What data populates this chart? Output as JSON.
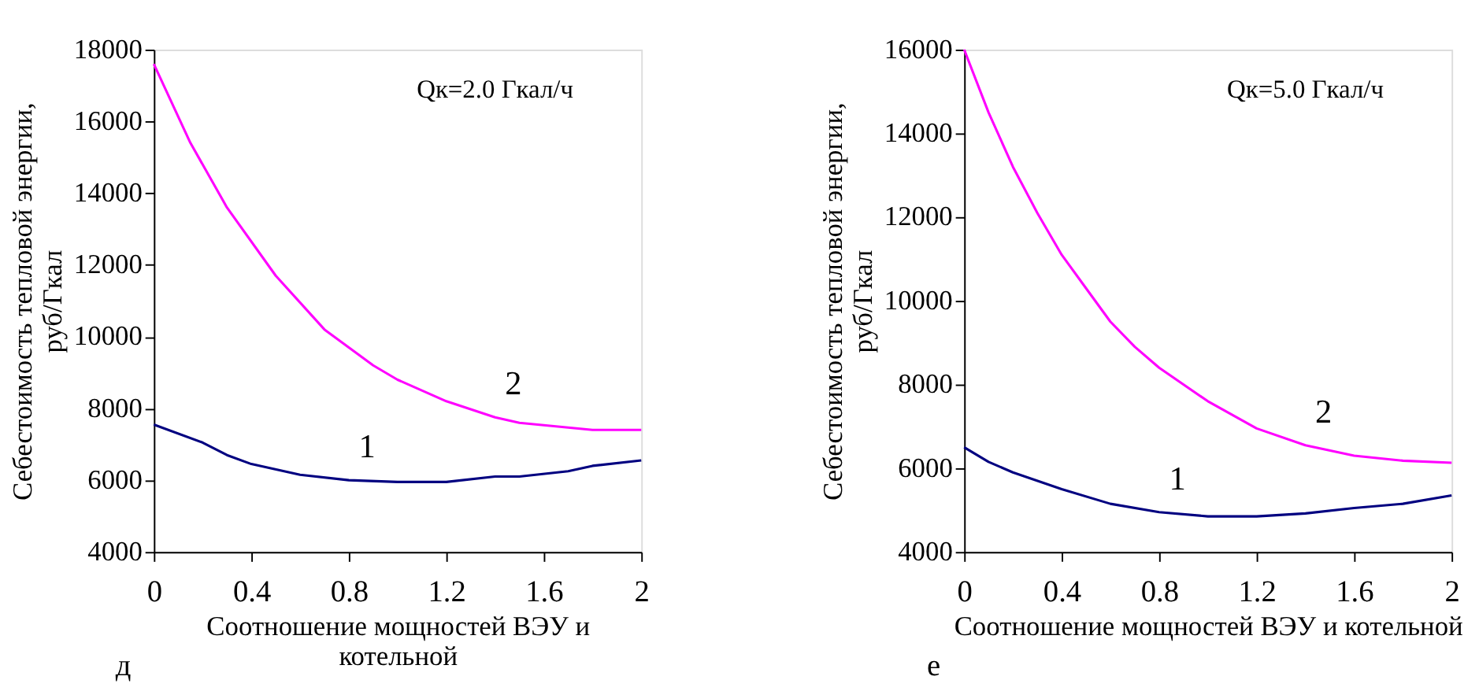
{
  "chart_data": [
    {
      "type": "line",
      "xlabel": "Соотношение мощностей ВЭУ и котельной",
      "ylabel": "Себестоимость тепловой энергии, руб/Гкал",
      "annotations": [
        "Qк=2.0 Гкал/ч",
        "д"
      ],
      "xlim": [
        0,
        2
      ],
      "xticks": [
        0,
        0.4,
        0.8,
        1.2,
        1.6,
        2
      ],
      "ylim": [
        4000,
        18000
      ],
      "yticks": [
        4000,
        6000,
        8000,
        10000,
        12000,
        14000,
        16000,
        18000
      ],
      "grid": false,
      "legend": false,
      "marker": "none",
      "line_style": "solid",
      "series": [
        {
          "name": "1",
          "color": "#000080",
          "x": [
            0,
            0.2,
            0.3,
            0.4,
            0.6,
            0.8,
            1.0,
            1.2,
            1.4,
            1.5,
            1.7,
            1.8,
            2.0
          ],
          "values": [
            7550,
            7050,
            6700,
            6450,
            6150,
            6000,
            5950,
            5950,
            6100,
            6100,
            6250,
            6400,
            6550
          ]
        },
        {
          "name": "2",
          "color": "#ff00ff",
          "x": [
            0,
            0.15,
            0.3,
            0.5,
            0.7,
            0.8,
            0.9,
            1.0,
            1.2,
            1.4,
            1.5,
            1.8,
            2.0
          ],
          "values": [
            17600,
            15400,
            13600,
            11700,
            10200,
            9700,
            9200,
            8800,
            8200,
            7750,
            7600,
            7400,
            7400
          ]
        }
      ]
    },
    {
      "type": "line",
      "xlabel": "Соотношение мощностей ВЭУ и котельной",
      "ylabel": "Себестоимость тепловой энергии, руб/Гкал",
      "annotations": [
        "Qк=5.0 Гкал/ч",
        "е"
      ],
      "xlim": [
        0,
        2
      ],
      "xticks": [
        0,
        0.4,
        0.8,
        1.2,
        1.6,
        2
      ],
      "ylim": [
        4000,
        16000
      ],
      "yticks": [
        4000,
        6000,
        8000,
        10000,
        12000,
        14000,
        16000
      ],
      "grid": false,
      "legend": false,
      "marker": "none",
      "line_style": "solid",
      "series": [
        {
          "name": "1",
          "color": "#000080",
          "x": [
            0,
            0.1,
            0.2,
            0.4,
            0.6,
            0.8,
            1.0,
            1.2,
            1.4,
            1.6,
            1.8,
            2.0
          ],
          "values": [
            6500,
            6150,
            5900,
            5500,
            5150,
            4950,
            4850,
            4850,
            4920,
            5050,
            5150,
            5350
          ]
        },
        {
          "name": "2",
          "color": "#ff00ff",
          "x": [
            0,
            0.1,
            0.2,
            0.3,
            0.4,
            0.5,
            0.6,
            0.7,
            0.8,
            1.0,
            1.2,
            1.4,
            1.6,
            1.8,
            2.0
          ],
          "values": [
            16000,
            14500,
            13200,
            12100,
            11100,
            10300,
            9500,
            8900,
            8400,
            7600,
            6950,
            6550,
            6300,
            6180,
            6130
          ]
        }
      ]
    }
  ]
}
